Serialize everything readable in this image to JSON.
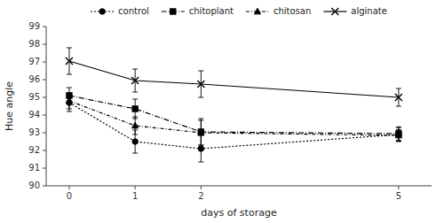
{
  "chart_data": {
    "type": "line",
    "xlabel": "days of storage",
    "ylabel": "Hue angle",
    "x": [
      0,
      1,
      2,
      5
    ],
    "xlim": [
      -0.35,
      5.5
    ],
    "xticks": [
      0,
      1,
      2,
      5
    ],
    "ylim": [
      90,
      99
    ],
    "yticks": [
      90,
      91,
      92,
      93,
      94,
      95,
      96,
      97,
      98,
      99
    ],
    "color": "#000000",
    "grid": false,
    "legend": "top",
    "series": [
      {
        "name": "control",
        "values": [
          94.7,
          92.5,
          92.1,
          92.9
        ],
        "errors": [
          0.5,
          0.65,
          0.75,
          0.4
        ],
        "marker": "circle",
        "line_style": "dotted"
      },
      {
        "name": "chitoplant",
        "values": [
          95.1,
          94.35,
          93.05,
          92.95
        ],
        "errors": [
          0.45,
          0.55,
          0.75,
          0.38
        ],
        "marker": "square",
        "line_style": "dashdot-long"
      },
      {
        "name": "chitosan",
        "values": [
          94.8,
          93.4,
          93.0,
          92.85
        ],
        "errors": [
          0.45,
          0.5,
          0.7,
          0.32
        ],
        "marker": "triangle",
        "line_style": "dashdot"
      },
      {
        "name": "alginate",
        "values": [
          97.05,
          95.95,
          95.75,
          95.0
        ],
        "errors": [
          0.75,
          0.65,
          0.75,
          0.5
        ],
        "marker": "x",
        "line_style": "solid"
      }
    ]
  }
}
